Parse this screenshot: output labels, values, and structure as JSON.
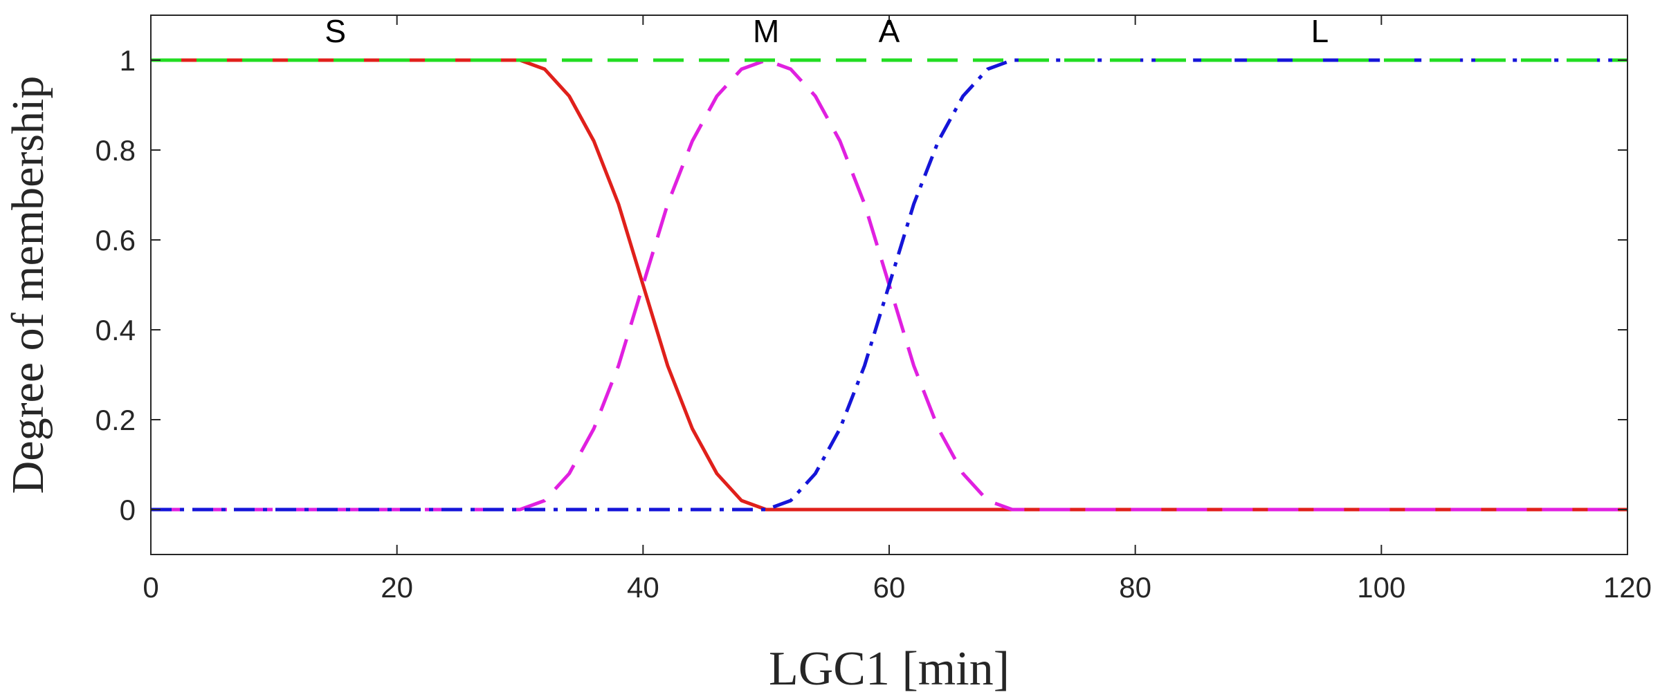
{
  "chart_data": {
    "type": "line",
    "title": "",
    "xlabel": "LGC1 [min]",
    "ylabel": "Degree of membership",
    "xlim": [
      0,
      120
    ],
    "ylim": [
      -0.1,
      1.1
    ],
    "xticks": [
      0,
      20,
      40,
      60,
      80,
      100,
      120
    ],
    "yticks": [
      0,
      0.2,
      0.4,
      0.6,
      0.8,
      1
    ],
    "ytick_labels": [
      "0",
      "0.2",
      "0.4",
      "0.6",
      "0.8",
      "1"
    ],
    "grid": false,
    "series": [
      {
        "name": "S",
        "color": "#e0201b",
        "style": "solid",
        "x": [
          0,
          30,
          32,
          34,
          36,
          38,
          40,
          42,
          44,
          46,
          48,
          50,
          120
        ],
        "y": [
          1,
          1,
          0.98,
          0.92,
          0.82,
          0.68,
          0.5,
          0.32,
          0.18,
          0.08,
          0.02,
          0,
          0
        ]
      },
      {
        "name": "M",
        "color": "#e020e0",
        "style": "dashed",
        "x": [
          0,
          30,
          32,
          34,
          36,
          38,
          40,
          42,
          44,
          46,
          48,
          50,
          52,
          54,
          56,
          58,
          60,
          62,
          64,
          66,
          68,
          70,
          120
        ],
        "y": [
          0,
          0,
          0.02,
          0.08,
          0.18,
          0.32,
          0.5,
          0.68,
          0.82,
          0.92,
          0.98,
          1,
          0.98,
          0.92,
          0.82,
          0.68,
          0.5,
          0.32,
          0.18,
          0.08,
          0.02,
          0,
          0
        ]
      },
      {
        "name": "A",
        "color": "#1515d8",
        "style": "dashdot",
        "x": [
          0,
          50,
          52,
          54,
          56,
          58,
          60,
          62,
          64,
          66,
          68,
          70,
          120
        ],
        "y": [
          0,
          0,
          0.02,
          0.08,
          0.18,
          0.32,
          0.5,
          0.68,
          0.82,
          0.92,
          0.98,
          1,
          1
        ]
      },
      {
        "name": "L",
        "color": "#22dd22",
        "style": "dashed",
        "x": [
          0,
          120
        ],
        "y": [
          1,
          1
        ]
      }
    ],
    "annotations": [
      {
        "text": "S",
        "x": 15,
        "y": 1.04
      },
      {
        "text": "M",
        "x": 50,
        "y": 1.04
      },
      {
        "text": "A",
        "x": 60,
        "y": 1.04
      },
      {
        "text": "L",
        "x": 95,
        "y": 1.04
      }
    ]
  }
}
